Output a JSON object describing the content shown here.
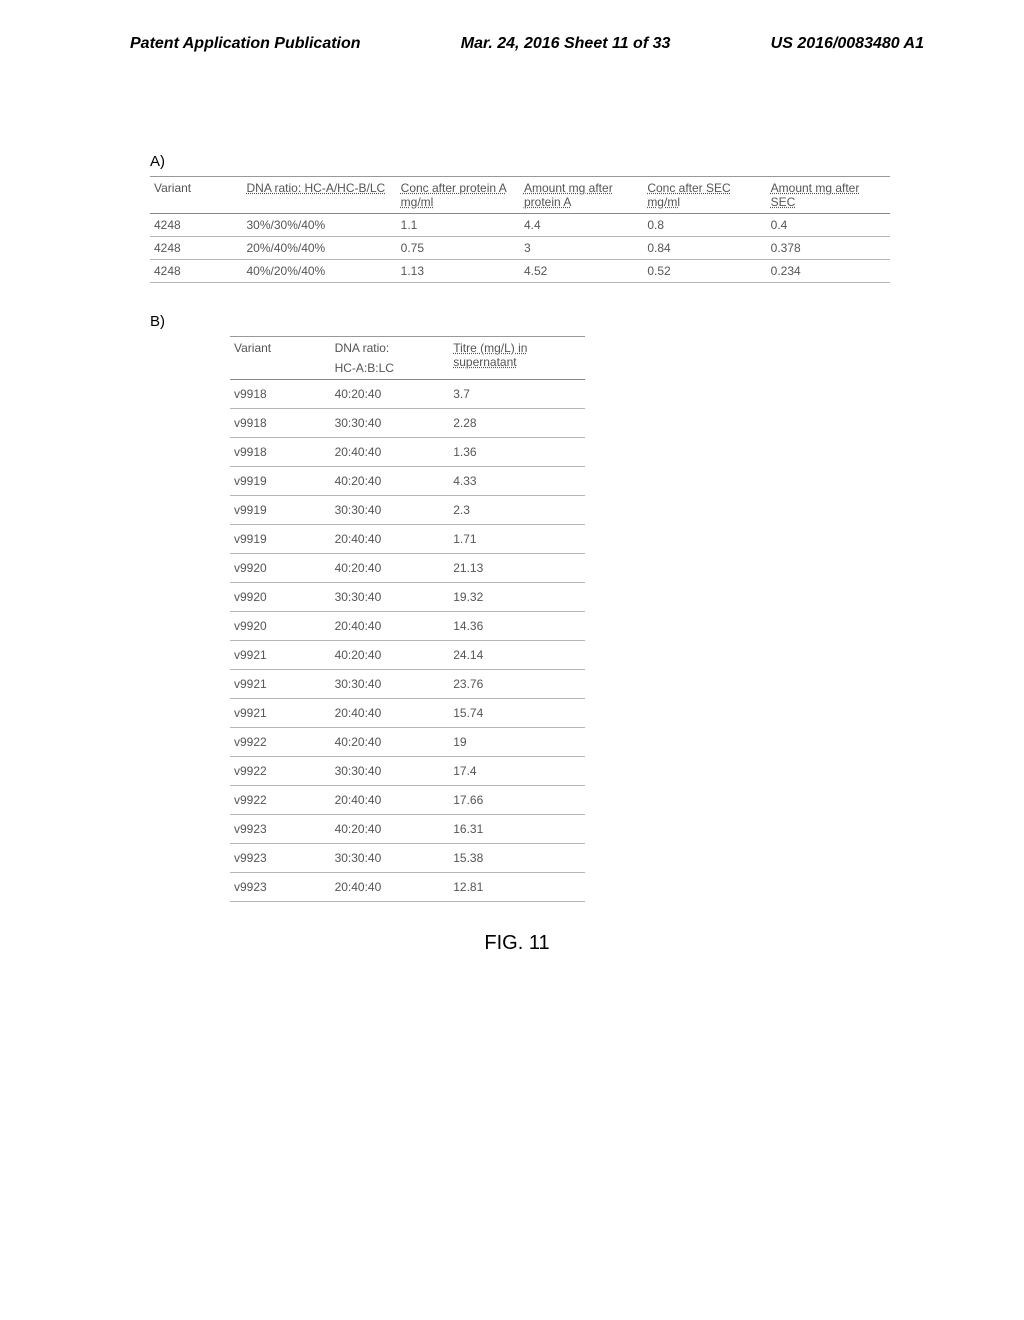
{
  "header": {
    "left": "Patent Application Publication",
    "center": "Mar. 24, 2016  Sheet 11 of 33",
    "right": "US 2016/0083480 A1"
  },
  "sectionA": {
    "label": "A)",
    "columns": {
      "variant": "Variant",
      "ratio": "DNA ratio:\nHC-A/HC-B/LC",
      "conc1": "Conc after protein A mg/ml",
      "amount1": "Amount mg after protein A",
      "conc2": "Conc after SEC mg/ml",
      "amount2": "Amount mg after SEC"
    },
    "rows": [
      {
        "variant": "4248",
        "ratio": "30%/30%/40%",
        "conc1": "1.1",
        "amount1": "4.4",
        "conc2": "0.8",
        "amount2": "0.4"
      },
      {
        "variant": "4248",
        "ratio": "20%/40%/40%",
        "conc1": "0.75",
        "amount1": "3",
        "conc2": "0.84",
        "amount2": "0.378"
      },
      {
        "variant": "4248",
        "ratio": "40%/20%/40%",
        "conc1": "1.13",
        "amount1": "4.52",
        "conc2": "0.52",
        "amount2": "0.234"
      }
    ]
  },
  "sectionB": {
    "label": "B)",
    "columns": {
      "variant": "Variant",
      "ratioTop": "DNA ratio:",
      "ratioBottom": "HC-A:B:LC",
      "titre": "Titre (mg/L) in supernatant"
    },
    "rows": [
      {
        "variant": "v9918",
        "ratio": "40:20:40",
        "titre": "3.7"
      },
      {
        "variant": "v9918",
        "ratio": "30:30:40",
        "titre": "2.28"
      },
      {
        "variant": "v9918",
        "ratio": "20:40:40",
        "titre": "1.36"
      },
      {
        "variant": "v9919",
        "ratio": "40:20:40",
        "titre": "4.33"
      },
      {
        "variant": "v9919",
        "ratio": "30:30:40",
        "titre": "2.3"
      },
      {
        "variant": "v9919",
        "ratio": "20:40:40",
        "titre": "1.71"
      },
      {
        "variant": "v9920",
        "ratio": "40:20:40",
        "titre": "21.13"
      },
      {
        "variant": "v9920",
        "ratio": "30:30:40",
        "titre": "19.32"
      },
      {
        "variant": "v9920",
        "ratio": "20:40:40",
        "titre": "14.36"
      },
      {
        "variant": "v9921",
        "ratio": "40:20:40",
        "titre": "24.14"
      },
      {
        "variant": "v9921",
        "ratio": "30:30:40",
        "titre": "23.76"
      },
      {
        "variant": "v9921",
        "ratio": "20:40:40",
        "titre": "15.74"
      },
      {
        "variant": "v9922",
        "ratio": "40:20:40",
        "titre": "19"
      },
      {
        "variant": "v9922",
        "ratio": "30:30:40",
        "titre": "17.4"
      },
      {
        "variant": "v9922",
        "ratio": "20:40:40",
        "titre": "17.66"
      },
      {
        "variant": "v9923",
        "ratio": "40:20:40",
        "titre": "16.31"
      },
      {
        "variant": "v9923",
        "ratio": "30:30:40",
        "titre": "15.38"
      },
      {
        "variant": "v9923",
        "ratio": "20:40:40",
        "titre": "12.81"
      }
    ]
  },
  "figure": {
    "caption": "FIG. 11"
  },
  "styling": {
    "page_bg": "#ffffff",
    "text_color": "#555555",
    "border_color": "#b5b5b5",
    "header_color": "#000000",
    "table_font_size": 12,
    "header_font_size": 16,
    "caption_font_size": 20
  }
}
